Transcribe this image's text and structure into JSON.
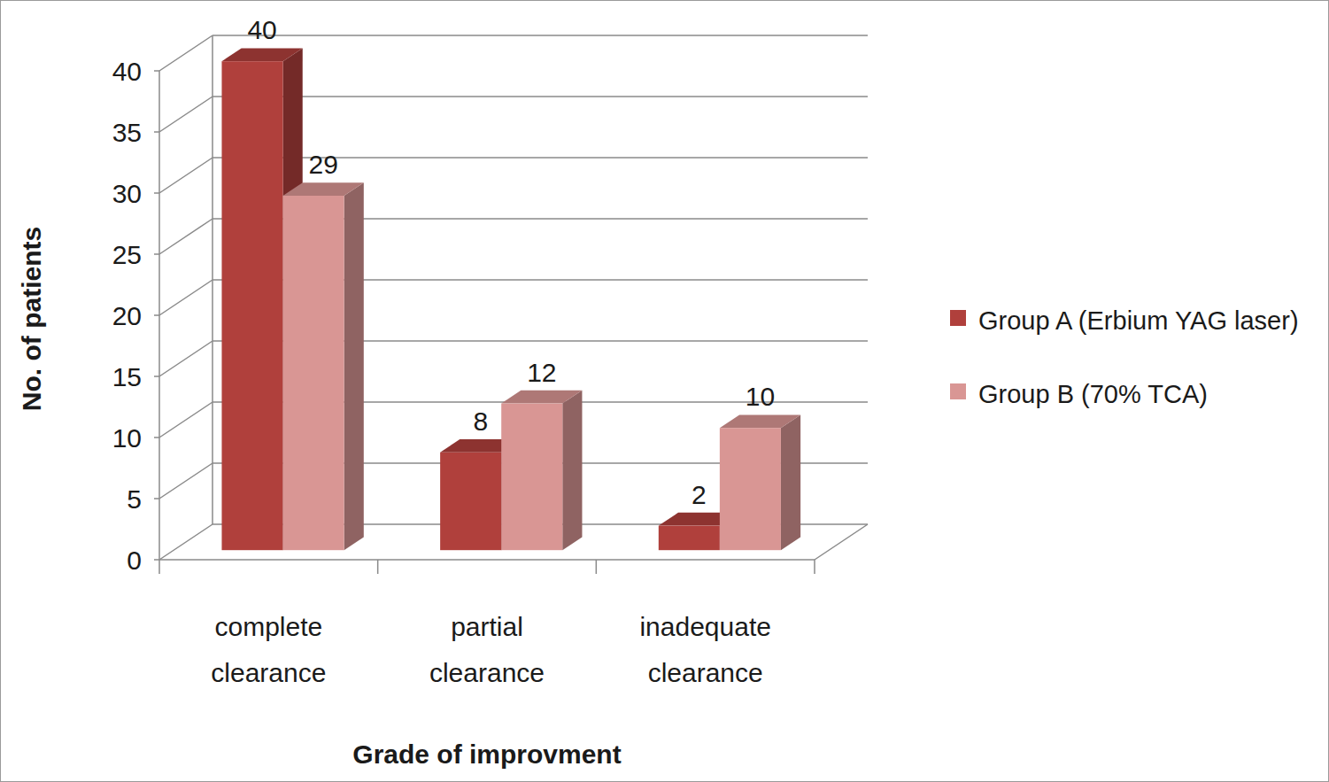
{
  "chart_data": {
    "type": "bar",
    "x_label": "Grade of improvment",
    "y_label": "No. of patients",
    "categories": [
      "complete clearance",
      "partial clearance",
      "inadequate clearance"
    ],
    "series": [
      {
        "name": "Group A (Erbium YAG laser)",
        "color": "#b0403c",
        "values": [
          40,
          8,
          2
        ]
      },
      {
        "name": "Group B (70% TCA)",
        "color": "#d99694",
        "values": [
          29,
          12,
          10
        ]
      }
    ],
    "ylim": [
      0,
      40
    ],
    "yticks": [
      0,
      5,
      10,
      15,
      20,
      25,
      30,
      35,
      40
    ],
    "grid": true,
    "legend": "right",
    "data_labels": true
  }
}
